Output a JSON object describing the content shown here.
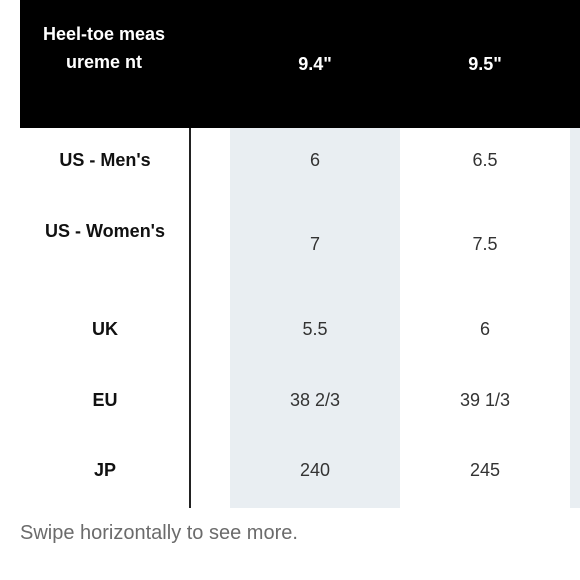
{
  "table": {
    "header_label": "Heel-toe measureme nt",
    "columns": [
      "9.4\"",
      "9.5\""
    ],
    "rows": [
      {
        "label": "US - Men's",
        "values": [
          "6",
          "6.5"
        ]
      },
      {
        "label": "US - Women's",
        "values": [
          "7",
          "7.5"
        ]
      },
      {
        "label": "UK",
        "values": [
          "5.5",
          "6"
        ]
      },
      {
        "label": "EU",
        "values": [
          "38 2/3",
          "39 1/3"
        ]
      },
      {
        "label": "JP",
        "values": [
          "240",
          "245"
        ]
      }
    ]
  },
  "footer": {
    "hint": "Swipe horizontally to see more."
  },
  "colors": {
    "header_bg": "#000000",
    "column_shade": "#e9eef2",
    "hint_text": "#6b6b6b"
  }
}
